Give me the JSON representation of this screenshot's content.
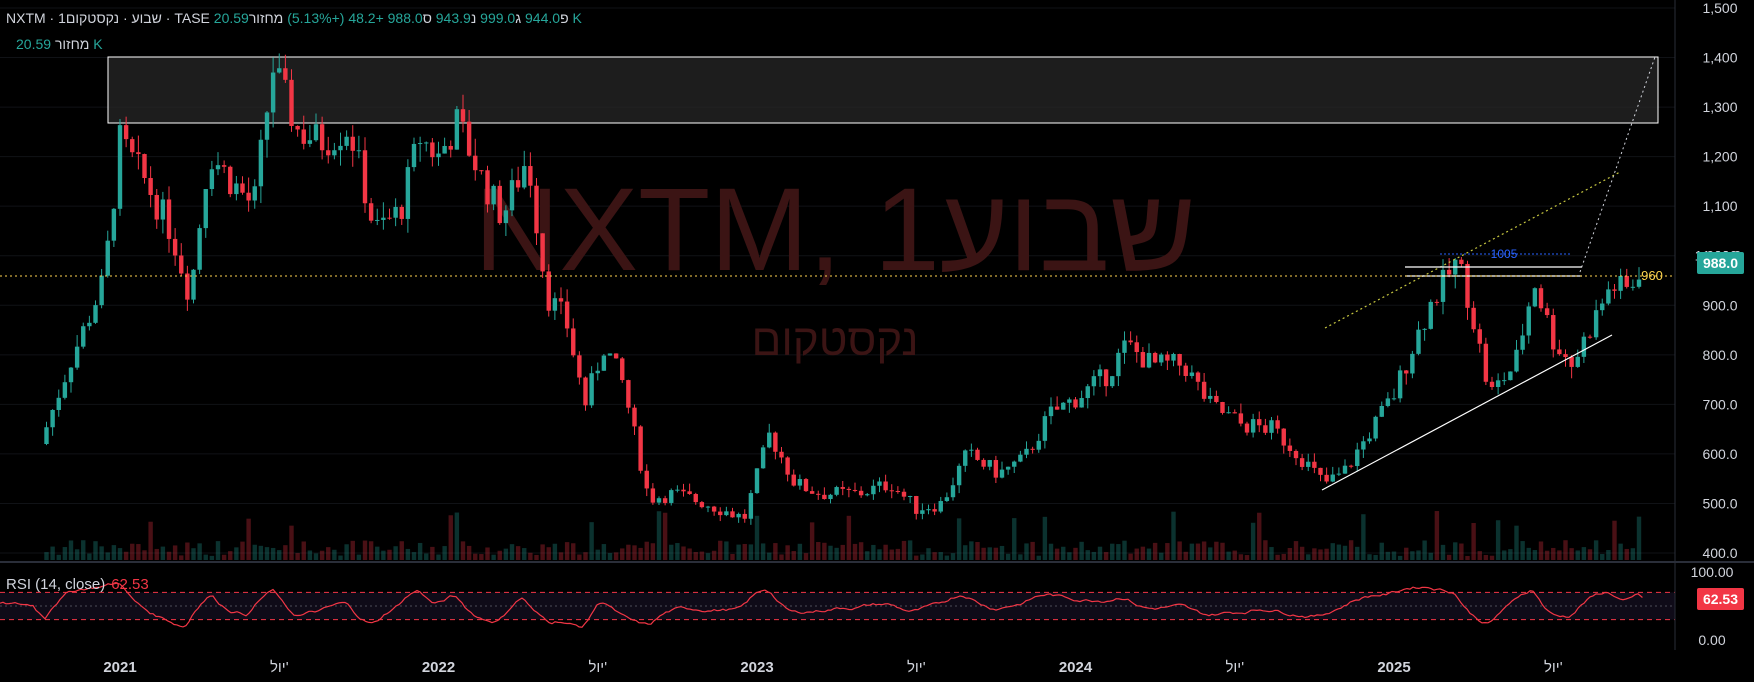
{
  "header": {
    "symbol": "NXTM",
    "interval": "1שבוע",
    "name": "נקסטקום",
    "exchange": "TASE",
    "open_label": "פ",
    "open": "944.0",
    "high_label": "ג",
    "high": "999.0",
    "low_label": "נ",
    "low": "943.9",
    "close_label": "ס",
    "close": "988.0",
    "change": "+48.2 (+5.13%)",
    "volume_label": "מחזור",
    "volume": "20.59 K"
  },
  "volume_row": {
    "label": "מחזור",
    "value": "20.59 K"
  },
  "watermark": {
    "title": "NXTM, 1שבוע",
    "subtitle": "נקסטקום"
  },
  "rsi": {
    "label": "RSI (14, close)",
    "value": "62.53",
    "badge": "62.53",
    "ticks": [
      "100.00",
      "0.00"
    ]
  },
  "price_badge": "988.0",
  "price_axis_partial": "1,000.0",
  "level_label": "960",
  "annotation_label": "1005",
  "colors": {
    "up": "#26a69a",
    "down": "#f23645",
    "rsi_badge": "#f23645",
    "level": "#ffd54f",
    "annotation": "#2962ff"
  },
  "chart_data": {
    "type": "candlestick",
    "x_axis_labels": [
      "2021",
      "יול'",
      "2022",
      "יול'",
      "2023",
      "יול'",
      "2024",
      "יול'",
      "2025",
      "יול'"
    ],
    "y_ticks": [
      "1,500",
      "1,400",
      "1,300",
      "1,200",
      "1,100",
      "1,000",
      "900.0",
      "800.0",
      "700.0",
      "600.0",
      "500.0",
      "400.0"
    ],
    "ylim": [
      400,
      1500
    ],
    "current_price": 988.0,
    "horizontal_level": 960,
    "resistance_zone": [
      1268,
      1400
    ],
    "weekly_close_path": [
      [
        2020.75,
        620
      ],
      [
        2020.84,
        780
      ],
      [
        2020.95,
        950
      ],
      [
        2021.0,
        1230
      ],
      [
        2021.08,
        1150
      ],
      [
        2021.16,
        1050
      ],
      [
        2021.22,
        920
      ],
      [
        2021.28,
        1210
      ],
      [
        2021.35,
        1150
      ],
      [
        2021.42,
        1100
      ],
      [
        2021.48,
        1380
      ],
      [
        2021.56,
        1250
      ],
      [
        2021.64,
        1230
      ],
      [
        2021.72,
        1260
      ],
      [
        2021.8,
        1050
      ],
      [
        2021.88,
        1090
      ],
      [
        2021.94,
        1240
      ],
      [
        2022.0,
        1200
      ],
      [
        2022.06,
        1270
      ],
      [
        2022.14,
        1150
      ],
      [
        2022.2,
        1080
      ],
      [
        2022.28,
        1200
      ],
      [
        2022.34,
        920
      ],
      [
        2022.4,
        870
      ],
      [
        2022.46,
        700
      ],
      [
        2022.52,
        820
      ],
      [
        2022.58,
        740
      ],
      [
        2022.66,
        510
      ],
      [
        2022.74,
        520
      ],
      [
        2022.84,
        500
      ],
      [
        2022.96,
        470
      ],
      [
        2023.04,
        640
      ],
      [
        2023.12,
        540
      ],
      [
        2023.2,
        520
      ],
      [
        2023.32,
        520
      ],
      [
        2023.42,
        540
      ],
      [
        2023.5,
        490
      ],
      [
        2023.58,
        500
      ],
      [
        2023.66,
        600
      ],
      [
        2023.76,
        560
      ],
      [
        2023.84,
        590
      ],
      [
        2023.92,
        680
      ],
      [
        2024.02,
        720
      ],
      [
        2024.1,
        760
      ],
      [
        2024.16,
        820
      ],
      [
        2024.24,
        780
      ],
      [
        2024.34,
        780
      ],
      [
        2024.42,
        700
      ],
      [
        2024.52,
        660
      ],
      [
        2024.62,
        650
      ],
      [
        2024.7,
        600
      ],
      [
        2024.78,
        540
      ],
      [
        2024.84,
        560
      ],
      [
        2024.92,
        640
      ],
      [
        2025.0,
        720
      ],
      [
        2025.06,
        820
      ],
      [
        2025.12,
        910
      ],
      [
        2025.2,
        990
      ],
      [
        2025.24,
        900
      ],
      [
        2025.3,
        720
      ],
      [
        2025.38,
        780
      ],
      [
        2025.44,
        950
      ],
      [
        2025.5,
        830
      ],
      [
        2025.56,
        780
      ],
      [
        2025.62,
        860
      ],
      [
        2025.68,
        940
      ],
      [
        2025.74,
        930
      ],
      [
        2025.78,
        988
      ]
    ],
    "rsi": {
      "ylim": [
        0,
        100
      ],
      "overbought": 70,
      "oversold": 30,
      "mid": 50,
      "current": 62.53
    }
  }
}
